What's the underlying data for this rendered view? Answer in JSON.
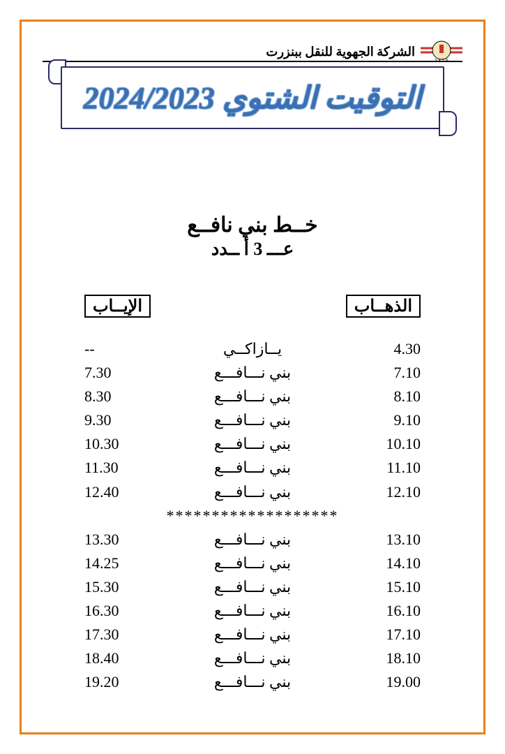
{
  "header": {
    "company_name": "الشركة الجهوية للنقل ببنزرت",
    "logo_label": "S.R.T.B"
  },
  "banner": {
    "title": "التوقيت الشتوي 2024/2023",
    "title_color": "#3b6fb0",
    "outline_color": "#7aa8d8",
    "scroll_border_color": "#2a2a6a"
  },
  "route": {
    "title": "خــط بني نافــع",
    "subtitle": "عـــ 3 أ ــدد"
  },
  "schedule": {
    "header_depart": "الذهــاب",
    "header_return": "الإيــاب",
    "separator": "*******************",
    "rows_top": [
      {
        "depart": "4.30",
        "dest": "يــازاكــي",
        "return": "--"
      },
      {
        "depart": "7.10",
        "dest": "بني نـــافـــع",
        "return": "7.30"
      },
      {
        "depart": "8.10",
        "dest": "بني نـــافـــع",
        "return": "8.30"
      },
      {
        "depart": "9.10",
        "dest": "بني نـــافـــع",
        "return": "9.30"
      },
      {
        "depart": "10.10",
        "dest": "بني نـــافـــع",
        "return": "10.30"
      },
      {
        "depart": "11.10",
        "dest": "بني نـــافـــع",
        "return": "11.30"
      },
      {
        "depart": "12.10",
        "dest": "بني نـــافـــع",
        "return": "12.40"
      }
    ],
    "rows_bottom": [
      {
        "depart": "13.10",
        "dest": "بني نـــافـــع",
        "return": "13.30"
      },
      {
        "depart": "14.10",
        "dest": "بني نـــافـــع",
        "return": "14.25"
      },
      {
        "depart": "15.10",
        "dest": "بني نـــافـــع",
        "return": "15.30"
      },
      {
        "depart": "16.10",
        "dest": "بني نـــافـــع",
        "return": "16.30"
      },
      {
        "depart": "17.10",
        "dest": "بني نـــافـــع",
        "return": "17.30"
      },
      {
        "depart": "18.10",
        "dest": "بني نـــافـــع",
        "return": "18.40"
      },
      {
        "depart": "19.00",
        "dest": "بني نـــافـــع",
        "return": "19.20"
      }
    ]
  },
  "style": {
    "page_border_color": "#e8801a",
    "text_color": "#000000",
    "font_family": "Times New Roman"
  }
}
